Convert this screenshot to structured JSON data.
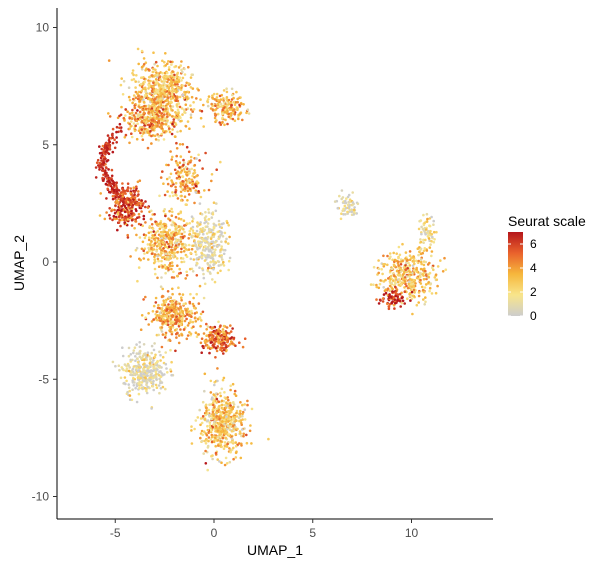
{
  "chart_data": {
    "type": "scatter",
    "title": "",
    "xlabel": "UMAP_1",
    "ylabel": "UMAP_2",
    "xlim": [
      -8,
      14
    ],
    "ylim": [
      -11,
      11
    ],
    "xticks": [
      -5,
      0,
      5,
      10
    ],
    "yticks": [
      -10,
      -5,
      0,
      5,
      10
    ],
    "xtick_labels": [
      "-5",
      "0",
      "5",
      "10"
    ],
    "ytick_labels": [
      "-10",
      "-5",
      "0",
      "5",
      "10"
    ],
    "grid": false,
    "legend": {
      "title": "Seurat scale",
      "placement": "right",
      "range": [
        0,
        7
      ],
      "ticks": [
        0,
        2,
        4,
        6
      ],
      "tick_labels": [
        "0",
        "2",
        "4",
        "6"
      ],
      "colors": [
        "#cdcdcd",
        "#f8e58b",
        "#f6b73c",
        "#e9622c",
        "#b5161b"
      ]
    },
    "clusters": [
      {
        "name": "top-left lobe",
        "center": [
          -2.7,
          7.2
        ],
        "spread": [
          1.4,
          1.2
        ],
        "n": 620,
        "value_mean": 3.0
      },
      {
        "name": "top-left shoulder",
        "center": [
          -3.2,
          6.0
        ],
        "spread": [
          1.3,
          0.7
        ],
        "n": 260,
        "value_mean": 3.8
      },
      {
        "name": "upper-right lobe edge",
        "center": [
          0.6,
          6.6
        ],
        "spread": [
          0.9,
          0.6
        ],
        "n": 160,
        "value_mean": 3.4
      },
      {
        "name": "mid-left red band",
        "center": [
          -4.4,
          2.4
        ],
        "spread": [
          0.8,
          0.8
        ],
        "n": 260,
        "value_mean": 5.8
      },
      {
        "name": "mid shoulder",
        "center": [
          -1.5,
          3.6
        ],
        "spread": [
          1.0,
          1.0
        ],
        "n": 170,
        "value_mean": 3.6
      },
      {
        "name": "central upper",
        "center": [
          -2.4,
          0.8
        ],
        "spread": [
          1.2,
          1.1
        ],
        "n": 420,
        "value_mean": 3.2
      },
      {
        "name": "central right grey",
        "center": [
          -0.3,
          0.8
        ],
        "spread": [
          0.9,
          1.3
        ],
        "n": 280,
        "value_mean": 1.1
      },
      {
        "name": "central lower",
        "center": [
          -2.0,
          -2.3
        ],
        "spread": [
          1.1,
          0.8
        ],
        "n": 330,
        "value_mean": 3.6
      },
      {
        "name": "red bridge",
        "center": [
          0.2,
          -3.3
        ],
        "spread": [
          0.7,
          0.6
        ],
        "n": 190,
        "value_mean": 5.0
      },
      {
        "name": "lower-left grey lobe",
        "center": [
          -3.5,
          -4.7
        ],
        "spread": [
          1.0,
          0.9
        ],
        "n": 330,
        "value_mean": 0.8
      },
      {
        "name": "bottom lobe",
        "center": [
          0.4,
          -6.9
        ],
        "spread": [
          1.0,
          1.3
        ],
        "n": 500,
        "value_mean": 2.8
      },
      {
        "name": "right island",
        "center": [
          9.9,
          -0.6
        ],
        "spread": [
          1.3,
          1.0
        ],
        "n": 360,
        "value_mean": 3.0
      },
      {
        "name": "right island core",
        "center": [
          9.0,
          -1.6
        ],
        "spread": [
          0.6,
          0.3
        ],
        "n": 70,
        "value_mean": 6.0
      },
      {
        "name": "right island top",
        "center": [
          10.8,
          1.3
        ],
        "spread": [
          0.4,
          0.6
        ],
        "n": 60,
        "value_mean": 1.6
      },
      {
        "name": "thin right strand",
        "center": [
          6.8,
          2.4
        ],
        "spread": [
          0.6,
          0.6
        ],
        "n": 60,
        "value_mean": 0.8
      }
    ],
    "arc": {
      "name": "left arc",
      "from": [
        -4.8,
        5.6
      ],
      "via": [
        -6.6,
        4.2
      ],
      "to": [
        -4.6,
        2.8
      ],
      "n": 180,
      "value_mean": 6.5
    }
  }
}
